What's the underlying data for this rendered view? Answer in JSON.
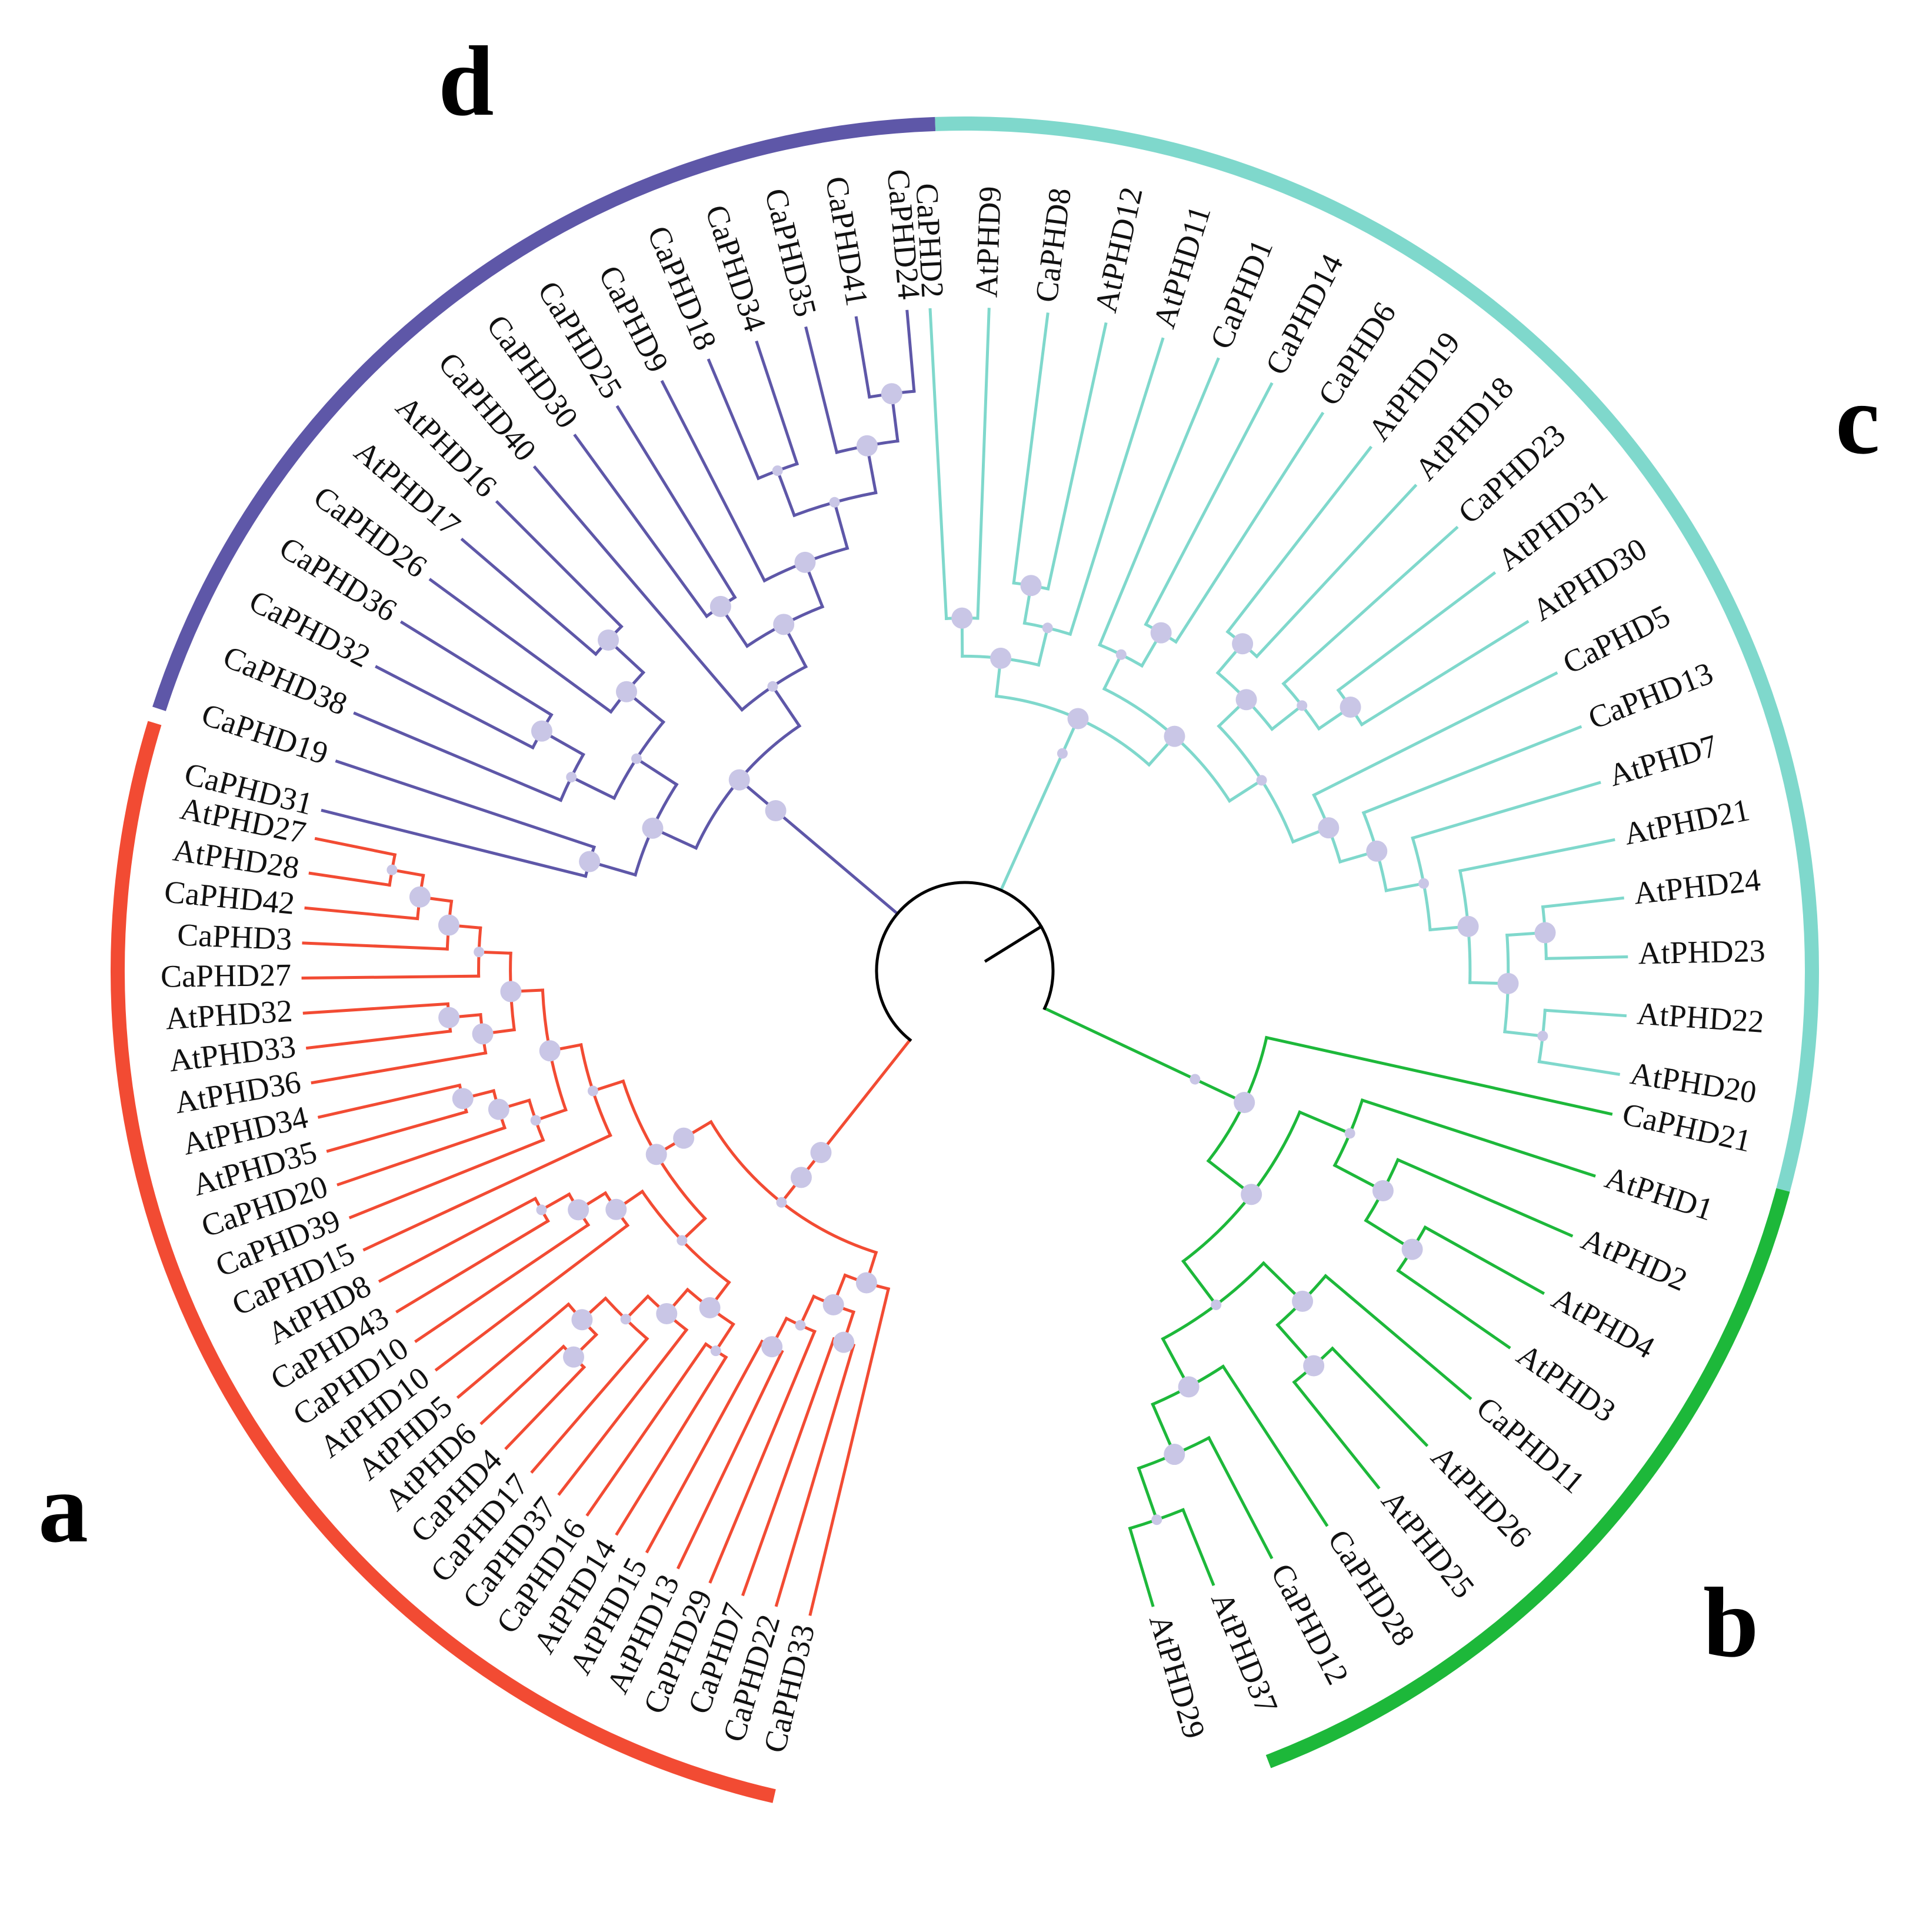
{
  "figure": {
    "type": "circular phylogenetic tree"
  },
  "colors": {
    "a": "#f24b33",
    "b": "#1db83a",
    "c": "#7fd8cc",
    "d": "#5e57a8",
    "root": "#000000",
    "support": "#c9c6e6"
  },
  "clades": [
    {
      "id": "a",
      "label": "a",
      "leaves": [
        "CaPHD33",
        "CaPHD22",
        "CaPHD7",
        "CaPHD29",
        "AtPHD13",
        "AtPHD15",
        "AtPHD14",
        "CaPHD16",
        "CaPHD37",
        "CaPHD17",
        "CaPHD4",
        "AtPHD6",
        "AtPHD5",
        "AtPHD10",
        "CaPHD10",
        "CaPHD43",
        "AtPHD8",
        "CaPHD15",
        "CaPHD39",
        "CaPHD20",
        "AtPHD35",
        "AtPHD34",
        "AtPHD36",
        "AtPHD33",
        "AtPHD32",
        "CaPHD27",
        "CaPHD3",
        "CaPHD42",
        "AtPHD28",
        "AtPHD27"
      ]
    },
    {
      "id": "d",
      "label": "d",
      "leaves": [
        "CaPHD31",
        "CaPHD19",
        "CaPHD38",
        "CaPHD32",
        "CaPHD36",
        "CaPHD26",
        "AtPHD17",
        "AtPHD16",
        "CaPHD40",
        "CaPHD30",
        "CaPHD25",
        "CaPHD9",
        "CaPHD18",
        "CaPHD34",
        "CaPHD35",
        "CaPHD41",
        "CaPHD24"
      ]
    },
    {
      "id": "c",
      "label": "c",
      "leaves": [
        "CaPHD2",
        "AtPHD9",
        "CaPHD8",
        "AtPHD12",
        "AtPHD11",
        "CaPHD1",
        "CaPHD14",
        "CaPHD6",
        "AtPHD19",
        "AtPHD18",
        "CaPHD23",
        "AtPHD31",
        "AtPHD30",
        "CaPHD5",
        "CaPHD13",
        "AtPHD7",
        "AtPHD21",
        "AtPHD24",
        "AtPHD23",
        "AtPHD22",
        "AtPHD20"
      ]
    },
    {
      "id": "b",
      "label": "b",
      "leaves": [
        "CaPHD21",
        "AtPHD1",
        "AtPHD2",
        "AtPHD4",
        "AtPHD3",
        "CaPHD11",
        "AtPHD26",
        "AtPHD25",
        "CaPHD28",
        "CaPHD12",
        "AtPHD37",
        "AtPHD29"
      ]
    }
  ]
}
